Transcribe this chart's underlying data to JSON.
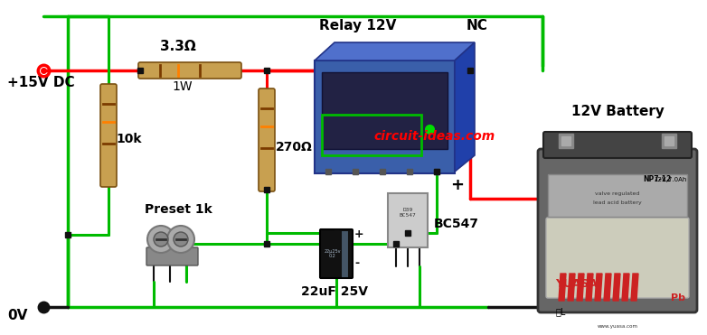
{
  "background_color": "#ffffff",
  "wire_red": "#ff0000",
  "wire_green": "#00bb00",
  "wire_black": "#111111",
  "node_color": "#111111",
  "label_color": "#000000",
  "website_color": "#ff0000",
  "labels": {
    "plus15v": "+15V DC",
    "zero_v": "0V",
    "r1_val": "3.3Ω",
    "r1_power": "1W",
    "r2_val": "10k",
    "r3_val": "270Ω",
    "preset": "Preset 1k",
    "cap": "22uF 25V",
    "transistor": "BC547",
    "relay": "Relay 12V",
    "nc": "NC",
    "battery": "12V Battery",
    "plus_sign": "+",
    "minus_sign": "-",
    "website": "circuit-ideas.com",
    "cap_plus": "+",
    "cap_minus": "-"
  },
  "resistor_body": "#c8a050",
  "resistor_edge": "#7a5010",
  "relay_front": "#3a5faa",
  "relay_top": "#5070cc",
  "relay_side": "#2040aa",
  "relay_dark": "#222244",
  "batt_dark": "#555555",
  "batt_label_bg": "#ccccbb",
  "batt_grey": "#aaaaaa",
  "transistor_body": "#cccccc",
  "transistor_edge": "#888888",
  "cap_body": "#111111",
  "preset_body": "#999999"
}
